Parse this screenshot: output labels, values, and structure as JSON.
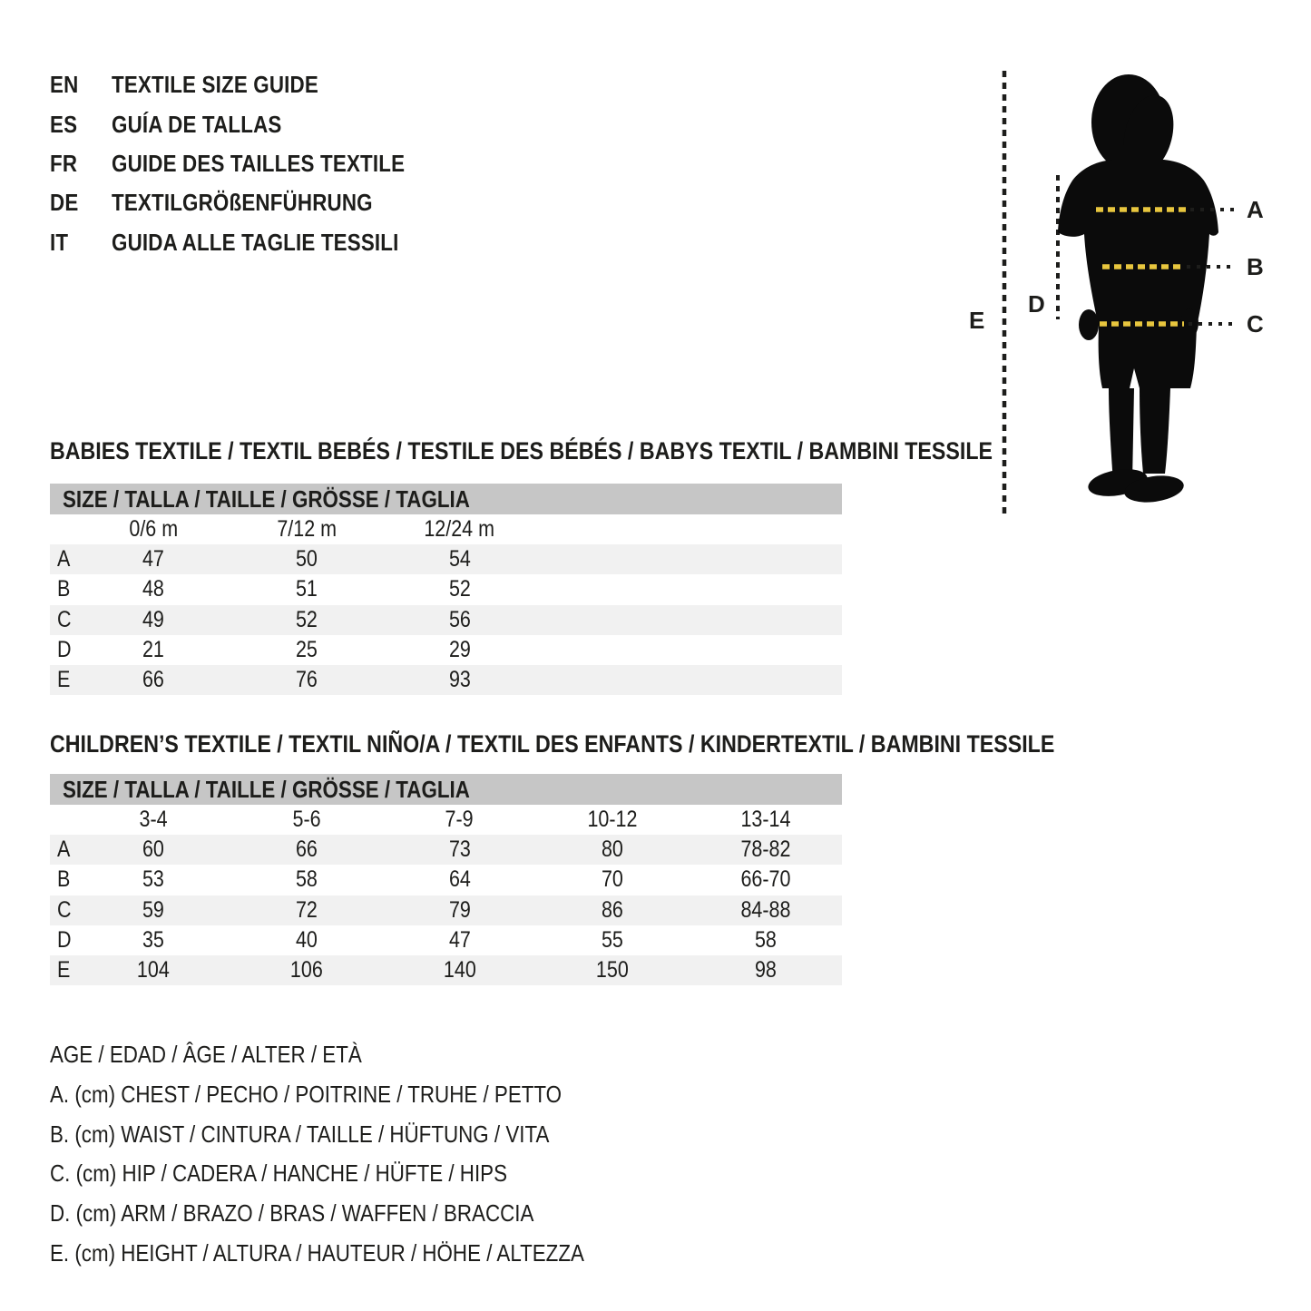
{
  "header": {
    "languages": [
      {
        "code": "EN",
        "title": "TEXTILE SIZE GUIDE"
      },
      {
        "code": "ES",
        "title": "GUÍA DE TALLAS"
      },
      {
        "code": "FR",
        "title": "GUIDE DES TAILLES TEXTILE"
      },
      {
        "code": "DE",
        "title": "TEXTILGRÖßENFÜHRUNG"
      },
      {
        "code": "IT",
        "title": "GUIDA ALLE TAGLIE TESSILI"
      }
    ]
  },
  "figure": {
    "labels": {
      "a": "A",
      "b": "B",
      "c": "C",
      "d": "D",
      "e": "E"
    },
    "accent_color": "#e8c63e",
    "silhouette_color": "#0b0b0b",
    "line_color": "#1d1d1b"
  },
  "babies_table": {
    "title": "BABIES TEXTILE / TEXTIL BEBÉS / TESTILE DES BÉBÉS / BABYS TEXTIL / BAMBINI TESSILE",
    "size_header": "SIZE / TALLA / TAILLE / GRÖSSE / TAGLIA",
    "columns": [
      "0/6 m",
      "7/12 m",
      "12/24 m"
    ],
    "rows": [
      {
        "label": "A",
        "values": [
          "47",
          "50",
          "54"
        ]
      },
      {
        "label": "B",
        "values": [
          "48",
          "51",
          "52"
        ]
      },
      {
        "label": "C",
        "values": [
          "49",
          "52",
          "56"
        ]
      },
      {
        "label": "D",
        "values": [
          "21",
          "25",
          "29"
        ]
      },
      {
        "label": "E",
        "values": [
          "66",
          "76",
          "93"
        ]
      }
    ]
  },
  "children_table": {
    "title": "CHILDREN’S TEXTILE / TEXTIL NIÑO/A / TEXTIL DES ENFANTS / KINDERTEXTIL / BAMBINI TESSILE",
    "size_header": "SIZE / TALLA / TAILLE / GRÖSSE / TAGLIA",
    "columns": [
      "3-4",
      "5-6",
      "7-9",
      "10-12",
      "13-14"
    ],
    "rows": [
      {
        "label": "A",
        "values": [
          "60",
          "66",
          "73",
          "80",
          "78-82"
        ]
      },
      {
        "label": "B",
        "values": [
          "53",
          "58",
          "64",
          "70",
          "66-70"
        ]
      },
      {
        "label": "C",
        "values": [
          "59",
          "72",
          "79",
          "86",
          "84-88"
        ]
      },
      {
        "label": "D",
        "values": [
          "35",
          "40",
          "47",
          "55",
          "58"
        ]
      },
      {
        "label": "E",
        "values": [
          "104",
          "106",
          "140",
          "150",
          "98"
        ]
      }
    ]
  },
  "legend": {
    "lines": [
      "AGE / EDAD / ÂGE / ALTER / ETÀ",
      "A. (cm) CHEST / PECHO / POITRINE / TRUHE / PETTO",
      "B. (cm) WAIST / CINTURA / TAILLE / HÜFTUNG / VITA",
      "C. (cm) HIP / CADERA / HANCHE / HÜFTE / HIPS",
      "D. (cm) ARM / BRAZO / BRAS / WAFFEN / BRACCIA",
      "E. (cm) HEIGHT / ALTURA / HAUTEUR / HÖHE / ALTEZZA"
    ]
  }
}
